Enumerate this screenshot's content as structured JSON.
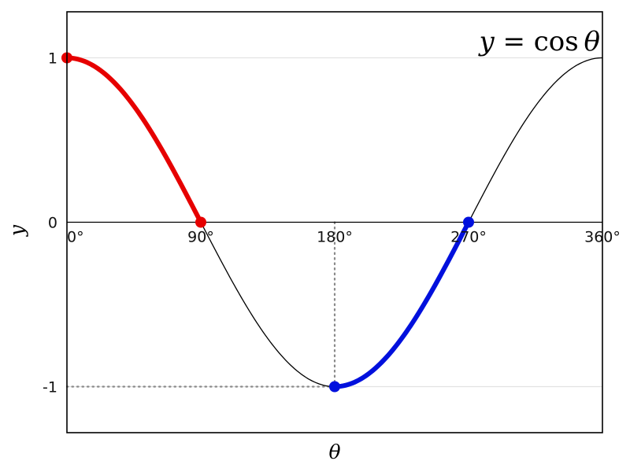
{
  "chart_data": {
    "type": "line",
    "function": "cos",
    "title": {
      "lhs": "y",
      "eq": " = ",
      "func": "cos",
      "arg": " θ",
      "full_text": "y = cos θ"
    },
    "xlabel": "θ",
    "ylabel": "y",
    "x_domain_deg": [
      0,
      360
    ],
    "ylim": [
      -1.28,
      1.28
    ],
    "x_ticks": [
      {
        "deg": 0,
        "label": "0°",
        "anchor": "start"
      },
      {
        "deg": 90,
        "label": "90°",
        "anchor": "middle"
      },
      {
        "deg": 180,
        "label": "180°",
        "anchor": "middle"
      },
      {
        "deg": 270,
        "label": "270°",
        "anchor": "middle"
      },
      {
        "deg": 360,
        "label": "360°",
        "anchor": "middle"
      }
    ],
    "y_ticks": [
      {
        "v": 1,
        "label": "1"
      },
      {
        "v": 0,
        "label": "0"
      },
      {
        "v": -1,
        "label": "-1"
      }
    ],
    "base_curve": {
      "color": "#000000",
      "width": 1.3
    },
    "segments": [
      {
        "name": "red-highlight",
        "from_deg": 0,
        "to_deg": 90,
        "color": "#e60000",
        "width": 6,
        "endpoints": [
          {
            "deg": 0,
            "y": 1
          },
          {
            "deg": 90,
            "y": 0
          }
        ]
      },
      {
        "name": "blue-highlight",
        "from_deg": 180,
        "to_deg": 270,
        "color": "#0010dd",
        "width": 6,
        "endpoints": [
          {
            "deg": 180,
            "y": -1
          },
          {
            "deg": 270,
            "y": 0
          }
        ]
      }
    ],
    "guides": [
      {
        "type": "v-dotted",
        "deg": 180,
        "from_y": 0,
        "to_y": -1
      },
      {
        "type": "h-dotted",
        "y": -1,
        "from_deg": 0,
        "to_deg": 180
      }
    ],
    "gridlines_y": [
      1,
      -1
    ],
    "colors": {
      "grid": "#e2e2e2",
      "dotted": "#8a8a8a",
      "axis": "#000000",
      "frame": "#000000",
      "point_radius": 7
    }
  }
}
